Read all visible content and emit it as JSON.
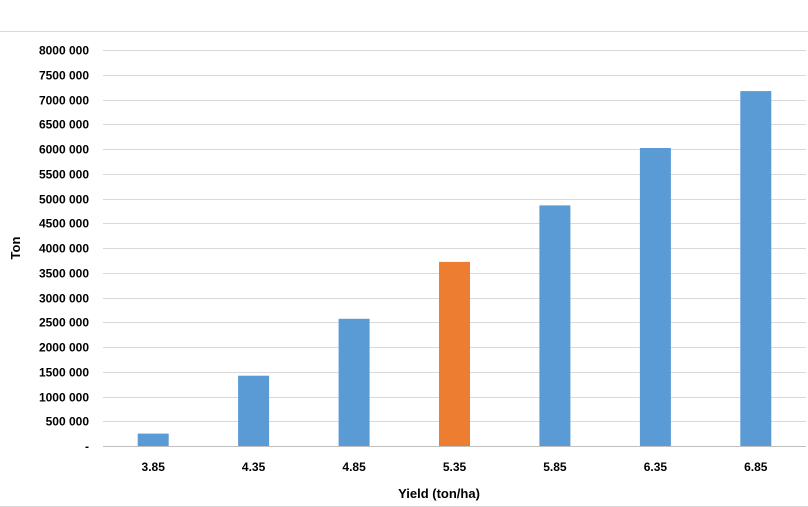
{
  "chart_data": {
    "type": "bar",
    "categories": [
      "3.85",
      "4.35",
      "4.85",
      "5.35",
      "5.85",
      "6.35",
      "6.85"
    ],
    "values": [
      250000,
      1420000,
      2570000,
      3720000,
      4860000,
      6020000,
      7170000
    ],
    "bar_colors": [
      "#5b9bd5",
      "#5b9bd5",
      "#5b9bd5",
      "#ed7d31",
      "#5b9bd5",
      "#5b9bd5",
      "#5b9bd5"
    ],
    "title": "",
    "xlabel": "Yield (ton/ha)",
    "ylabel": "Ton",
    "ylim": [
      0,
      8000000
    ],
    "ytick_step": 500000,
    "ytick_labels": [
      "-",
      "500 000",
      "1000 000",
      "1500 000",
      "2000 000",
      "2500 000",
      "3000 000",
      "3500 000",
      "4000 000",
      "4500 000",
      "5000 000",
      "5500 000",
      "6000 000",
      "6500 000",
      "7000 000",
      "7500 000",
      "8000 000"
    ],
    "grid": true,
    "legend": "none",
    "colors": {
      "gridline": "#d9d9d9",
      "axis": "#bfbfbf",
      "default_bar": "#5b9bd5",
      "highlight_bar": "#ed7d31"
    }
  }
}
